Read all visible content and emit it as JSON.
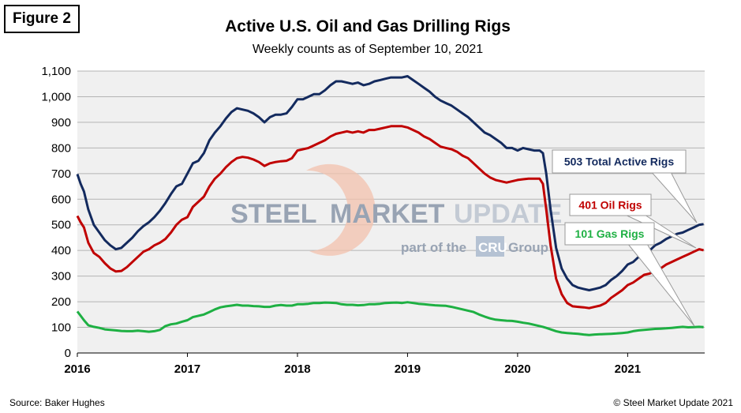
{
  "figure_label": "Figure 2",
  "source": "Source: Baker Hughes",
  "copyright": "© Steel Market Update 2021",
  "watermark": {
    "steel": "STEEL",
    "market": "MARKET",
    "update": "UPDATE",
    "part_of": "part of the",
    "cru": "CRU",
    "group": "Group"
  },
  "colors": {
    "total": "#132a5e",
    "oil": "#c00000",
    "gas": "#1eb043",
    "plot_bg": "#f0f0f0",
    "grid": "#b4b4b4"
  },
  "chart_data": {
    "type": "line",
    "title": "Active U.S. Oil and Gas Drilling Rigs",
    "subtitle": "Weekly counts as of September 10, 2021",
    "xlabel": "",
    "ylabel": "",
    "ylim": [
      0,
      1100
    ],
    "xlim": [
      2016.0,
      2021.7
    ],
    "grid": true,
    "y_ticks": [
      "0",
      "100",
      "200",
      "300",
      "400",
      "500",
      "600",
      "700",
      "800",
      "900",
      "1,000",
      "1,100"
    ],
    "x_ticks": [
      "2016",
      "2017",
      "2018",
      "2019",
      "2020",
      "2021"
    ],
    "series": [
      {
        "name": "Total",
        "key": "total",
        "x": [
          2016.0,
          2016.03,
          2016.06,
          2016.1,
          2016.15,
          2016.2,
          2016.25,
          2016.3,
          2016.35,
          2016.4,
          2016.45,
          2016.5,
          2016.55,
          2016.6,
          2016.65,
          2016.7,
          2016.75,
          2016.8,
          2016.85,
          2016.9,
          2016.95,
          2017.0,
          2017.05,
          2017.1,
          2017.15,
          2017.2,
          2017.25,
          2017.3,
          2017.35,
          2017.4,
          2017.45,
          2017.5,
          2017.55,
          2017.6,
          2017.65,
          2017.7,
          2017.75,
          2017.8,
          2017.85,
          2017.9,
          2017.95,
          2018.0,
          2018.05,
          2018.1,
          2018.15,
          2018.2,
          2018.25,
          2018.3,
          2018.35,
          2018.4,
          2018.45,
          2018.5,
          2018.55,
          2018.6,
          2018.65,
          2018.7,
          2018.75,
          2018.8,
          2018.85,
          2018.9,
          2018.95,
          2019.0,
          2019.05,
          2019.1,
          2019.15,
          2019.2,
          2019.25,
          2019.3,
          2019.35,
          2019.4,
          2019.45,
          2019.5,
          2019.55,
          2019.6,
          2019.65,
          2019.7,
          2019.75,
          2019.8,
          2019.85,
          2019.9,
          2019.95,
          2020.0,
          2020.05,
          2020.1,
          2020.15,
          2020.2,
          2020.23,
          2020.26,
          2020.3,
          2020.35,
          2020.4,
          2020.45,
          2020.5,
          2020.55,
          2020.6,
          2020.65,
          2020.7,
          2020.75,
          2020.8,
          2020.85,
          2020.9,
          2020.95,
          2021.0,
          2021.05,
          2021.1,
          2021.15,
          2021.2,
          2021.25,
          2021.3,
          2021.35,
          2021.4,
          2021.45,
          2021.5,
          2021.55,
          2021.6,
          2021.65,
          2021.69
        ],
        "values": [
          698,
          660,
          630,
          560,
          500,
          470,
          440,
          420,
          405,
          410,
          430,
          450,
          475,
          495,
          510,
          530,
          555,
          585,
          620,
          650,
          660,
          700,
          740,
          750,
          780,
          830,
          860,
          885,
          915,
          940,
          955,
          950,
          945,
          935,
          920,
          900,
          920,
          930,
          930,
          935,
          960,
          990,
          990,
          1000,
          1010,
          1010,
          1025,
          1045,
          1060,
          1060,
          1055,
          1050,
          1055,
          1045,
          1050,
          1060,
          1065,
          1070,
          1075,
          1075,
          1075,
          1080,
          1065,
          1050,
          1035,
          1020,
          1000,
          985,
          975,
          965,
          950,
          935,
          920,
          900,
          880,
          860,
          850,
          835,
          820,
          800,
          800,
          790,
          800,
          795,
          790,
          790,
          780,
          700,
          560,
          410,
          330,
          290,
          265,
          255,
          250,
          245,
          250,
          255,
          265,
          285,
          300,
          320,
          345,
          355,
          375,
          395,
          400,
          420,
          430,
          445,
          455,
          465,
          470,
          480,
          490,
          500,
          503
        ]
      },
      {
        "name": "Oil",
        "key": "oil",
        "x": [
          2016.0,
          2016.03,
          2016.06,
          2016.1,
          2016.15,
          2016.2,
          2016.25,
          2016.3,
          2016.35,
          2016.4,
          2016.45,
          2016.5,
          2016.55,
          2016.6,
          2016.65,
          2016.7,
          2016.75,
          2016.8,
          2016.85,
          2016.9,
          2016.95,
          2017.0,
          2017.05,
          2017.1,
          2017.15,
          2017.2,
          2017.25,
          2017.3,
          2017.35,
          2017.4,
          2017.45,
          2017.5,
          2017.55,
          2017.6,
          2017.65,
          2017.7,
          2017.75,
          2017.8,
          2017.85,
          2017.9,
          2017.95,
          2018.0,
          2018.05,
          2018.1,
          2018.15,
          2018.2,
          2018.25,
          2018.3,
          2018.35,
          2018.4,
          2018.45,
          2018.5,
          2018.55,
          2018.6,
          2018.65,
          2018.7,
          2018.75,
          2018.8,
          2018.85,
          2018.9,
          2018.95,
          2019.0,
          2019.05,
          2019.1,
          2019.15,
          2019.2,
          2019.25,
          2019.3,
          2019.35,
          2019.4,
          2019.45,
          2019.5,
          2019.55,
          2019.6,
          2019.65,
          2019.7,
          2019.75,
          2019.8,
          2019.85,
          2019.9,
          2019.95,
          2020.0,
          2020.05,
          2020.1,
          2020.15,
          2020.2,
          2020.23,
          2020.26,
          2020.3,
          2020.35,
          2020.4,
          2020.45,
          2020.5,
          2020.55,
          2020.6,
          2020.65,
          2020.7,
          2020.75,
          2020.8,
          2020.85,
          2020.9,
          2020.95,
          2021.0,
          2021.05,
          2021.1,
          2021.15,
          2021.2,
          2021.25,
          2021.3,
          2021.35,
          2021.4,
          2021.45,
          2021.5,
          2021.55,
          2021.6,
          2021.65,
          2021.69
        ],
        "values": [
          535,
          510,
          490,
          430,
          390,
          375,
          350,
          330,
          318,
          320,
          335,
          355,
          375,
          395,
          405,
          420,
          430,
          445,
          470,
          500,
          520,
          530,
          570,
          590,
          610,
          650,
          680,
          700,
          725,
          745,
          760,
          765,
          762,
          755,
          745,
          730,
          740,
          745,
          748,
          750,
          760,
          790,
          795,
          800,
          810,
          820,
          830,
          845,
          855,
          860,
          865,
          860,
          865,
          860,
          870,
          870,
          875,
          880,
          885,
          885,
          885,
          880,
          870,
          860,
          845,
          835,
          820,
          805,
          800,
          795,
          785,
          770,
          760,
          740,
          720,
          700,
          685,
          675,
          670,
          665,
          670,
          675,
          678,
          680,
          680,
          680,
          660,
          560,
          420,
          290,
          230,
          195,
          182,
          180,
          178,
          175,
          180,
          185,
          195,
          215,
          230,
          245,
          265,
          275,
          290,
          305,
          310,
          320,
          330,
          345,
          355,
          365,
          375,
          385,
          395,
          405,
          401
        ]
      },
      {
        "name": "Gas",
        "key": "gas",
        "x": [
          2016.0,
          2016.03,
          2016.06,
          2016.1,
          2016.15,
          2016.2,
          2016.25,
          2016.3,
          2016.35,
          2016.4,
          2016.45,
          2016.5,
          2016.55,
          2016.6,
          2016.65,
          2016.7,
          2016.75,
          2016.8,
          2016.85,
          2016.9,
          2016.95,
          2017.0,
          2017.05,
          2017.1,
          2017.15,
          2017.2,
          2017.25,
          2017.3,
          2017.35,
          2017.4,
          2017.45,
          2017.5,
          2017.55,
          2017.6,
          2017.65,
          2017.7,
          2017.75,
          2017.8,
          2017.85,
          2017.9,
          2017.95,
          2018.0,
          2018.05,
          2018.1,
          2018.15,
          2018.2,
          2018.25,
          2018.3,
          2018.35,
          2018.4,
          2018.45,
          2018.5,
          2018.55,
          2018.6,
          2018.65,
          2018.7,
          2018.75,
          2018.8,
          2018.85,
          2018.9,
          2018.95,
          2019.0,
          2019.05,
          2019.1,
          2019.15,
          2019.2,
          2019.25,
          2019.3,
          2019.35,
          2019.4,
          2019.45,
          2019.5,
          2019.55,
          2019.6,
          2019.65,
          2019.7,
          2019.75,
          2019.8,
          2019.85,
          2019.9,
          2019.95,
          2020.0,
          2020.05,
          2020.1,
          2020.15,
          2020.2,
          2020.23,
          2020.26,
          2020.3,
          2020.35,
          2020.4,
          2020.45,
          2020.5,
          2020.55,
          2020.6,
          2020.65,
          2020.7,
          2020.75,
          2020.8,
          2020.85,
          2020.9,
          2020.95,
          2021.0,
          2021.05,
          2021.1,
          2021.15,
          2021.2,
          2021.25,
          2021.3,
          2021.35,
          2021.4,
          2021.45,
          2021.5,
          2021.55,
          2021.6,
          2021.65,
          2021.69
        ],
        "values": [
          162,
          145,
          128,
          108,
          102,
          98,
          92,
          90,
          88,
          86,
          85,
          85,
          87,
          85,
          83,
          85,
          90,
          105,
          112,
          115,
          122,
          128,
          140,
          145,
          150,
          160,
          170,
          178,
          182,
          185,
          188,
          185,
          185,
          183,
          182,
          180,
          180,
          185,
          187,
          185,
          185,
          190,
          190,
          192,
          195,
          195,
          197,
          196,
          195,
          190,
          188,
          188,
          186,
          187,
          190,
          190,
          192,
          195,
          196,
          197,
          195,
          198,
          195,
          192,
          190,
          188,
          186,
          185,
          184,
          180,
          175,
          170,
          165,
          160,
          150,
          142,
          135,
          130,
          128,
          126,
          125,
          122,
          118,
          115,
          110,
          105,
          102,
          98,
          92,
          85,
          80,
          78,
          76,
          75,
          72,
          70,
          72,
          73,
          74,
          75,
          76,
          78,
          80,
          85,
          88,
          90,
          92,
          94,
          95,
          96,
          98,
          100,
          102,
          100,
          101,
          102,
          101
        ]
      }
    ],
    "annotations": [
      {
        "text": "503 Total Active Rigs",
        "series": "total",
        "color": "#132a5e"
      },
      {
        "text": "401 Oil Rigs",
        "series": "oil",
        "color": "#c00000"
      },
      {
        "text": "101 Gas Rigs",
        "series": "gas",
        "color": "#1eb043"
      }
    ]
  }
}
